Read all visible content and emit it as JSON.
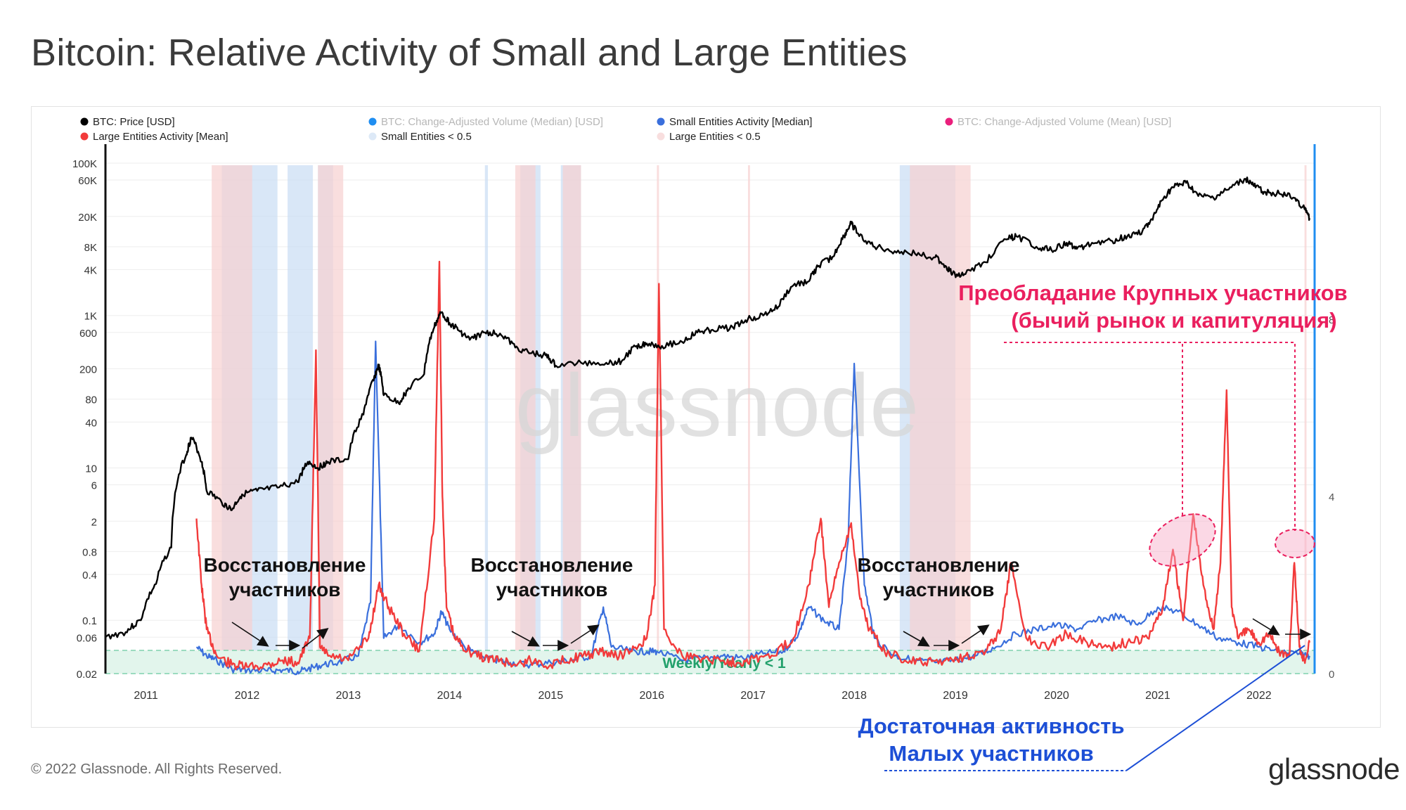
{
  "title": "Bitcoin: Relative Activity of Small and Large Entities",
  "footer": "© 2022 Glassnode. All Rights Reserved.",
  "brand": "glassnode",
  "watermark": "glassnode",
  "annotations": {
    "recovery_label": "Восстановление участников",
    "large_dominance_line1": "Преобладание Крупных участников",
    "large_dominance_line2": "(бычий рынок и капитуляция)",
    "small_activity_line1": "Достаточная активность",
    "small_activity_line2": "Малых участников",
    "threshold_band": "Weekly/Yearly  < 1"
  },
  "colors": {
    "price": "#000000",
    "small_entities": "#3a6fdc",
    "large_entities": "#f23b3b",
    "median_volume": "#1f8ef1",
    "mean_volume": "#ea1f7c",
    "small_band": "#c9ddf3",
    "large_band": "#f6d0d0",
    "threshold_band": "#e2f5ec",
    "threshold_text": "#22a06b",
    "annotation_red": "#ea1f5e",
    "annotation_blue": "#1d4fd6"
  },
  "chart_data": {
    "type": "line",
    "legend": [
      {
        "label": "BTC: Price [USD]",
        "color": "#000000"
      },
      {
        "label": "BTC: Change-Adjusted Volume (Median) [USD]",
        "color": "#1f8ef1",
        "faded": true
      },
      {
        "label": "Small Entities Activity [Median]",
        "color": "#3a6fdc"
      },
      {
        "label": "BTC: Change-Adjusted Volume (Mean) [USD]",
        "color": "#ea1f7c",
        "faded": true
      },
      {
        "label": "Large Entities Activity [Mean]",
        "color": "#f23b3b"
      },
      {
        "label": "Small Entities < 0.5",
        "color": "#dde9f7"
      },
      {
        "label": "Large Entities < 0.5",
        "color": "#f8dede"
      }
    ],
    "x_ticks": [
      "2011",
      "2012",
      "2013",
      "2014",
      "2015",
      "2016",
      "2017",
      "2018",
      "2019",
      "2020",
      "2021",
      "2022"
    ],
    "y_left_ticks": [
      "100K",
      "60K",
      "20K",
      "8K",
      "4K",
      "1K",
      "600",
      "200",
      "80",
      "40",
      "10",
      "6",
      "2",
      "0.8",
      "0.4",
      "0.1",
      "0.06",
      "0.02"
    ],
    "y_right_ticks": [
      "8",
      "4",
      "0"
    ],
    "y_left_scale": "log",
    "y_left_range": [
      0.02,
      100000
    ],
    "y_right_range": [
      0,
      8
    ],
    "threshold_right": 0.3,
    "price_series": {
      "name": "BTC: Price [USD]",
      "x": [
        2010.6,
        2010.8,
        2010.95,
        2011.1,
        2011.25,
        2011.4,
        2011.45,
        2011.55,
        2011.6,
        2011.75,
        2011.85,
        2011.95,
        2012.1,
        2012.3,
        2012.5,
        2012.6,
        2012.7,
        2012.8,
        2013.0,
        2013.15,
        2013.25,
        2013.3,
        2013.35,
        2013.5,
        2013.6,
        2013.75,
        2013.85,
        2013.92,
        2014.0,
        2014.1,
        2014.2,
        2014.35,
        2014.5,
        2014.65,
        2014.8,
        2014.95,
        2015.05,
        2015.3,
        2015.55,
        2015.7,
        2015.85,
        2015.95,
        2016.1,
        2016.3,
        2016.45,
        2016.6,
        2016.8,
        2016.95,
        2017.1,
        2017.25,
        2017.4,
        2017.55,
        2017.65,
        2017.8,
        2017.9,
        2017.97,
        2018.05,
        2018.2,
        2018.4,
        2018.6,
        2018.8,
        2018.9,
        2018.97,
        2019.1,
        2019.3,
        2019.5,
        2019.6,
        2019.8,
        2019.95,
        2020.1,
        2020.2,
        2020.35,
        2020.55,
        2020.7,
        2020.85,
        2020.95,
        2021.05,
        2021.15,
        2021.28,
        2021.4,
        2021.55,
        2021.7,
        2021.87,
        2021.95,
        2022.05,
        2022.2,
        2022.35,
        2022.45,
        2022.5
      ],
      "values": [
        0.06,
        0.07,
        0.1,
        0.3,
        0.9,
        15,
        25,
        12,
        5,
        3.5,
        2.8,
        4.5,
        5,
        5.5,
        6.5,
        12,
        10,
        12,
        13,
        50,
        140,
        220,
        90,
        70,
        110,
        170,
        700,
        1100,
        800,
        620,
        480,
        600,
        580,
        380,
        320,
        300,
        220,
        240,
        240,
        250,
        400,
        430,
        400,
        450,
        600,
        650,
        700,
        900,
        1000,
        1300,
        2500,
        2800,
        4500,
        6000,
        11000,
        16000,
        11000,
        8000,
        7000,
        6500,
        5800,
        4500,
        3500,
        3500,
        5000,
        10000,
        11000,
        8000,
        7200,
        9000,
        7500,
        9000,
        9500,
        11000,
        13000,
        18000,
        33000,
        48000,
        55000,
        37000,
        35000,
        45000,
        62000,
        50000,
        42000,
        40000,
        35000,
        25000,
        19000
      ]
    },
    "series": [
      {
        "name": "Small Entities Activity [Median]",
        "x": [
          2011.5,
          2011.6,
          2011.7,
          2011.85,
          2012.0,
          2012.2,
          2012.35,
          2012.5,
          2012.6,
          2012.75,
          2012.9,
          2013.1,
          2013.22,
          2013.27,
          2013.35,
          2013.5,
          2013.7,
          2013.85,
          2013.92,
          2014.0,
          2014.15,
          2014.3,
          2014.45,
          2014.6,
          2014.8,
          2015.0,
          2015.2,
          2015.4,
          2015.52,
          2015.6,
          2015.8,
          2015.95,
          2016.05,
          2016.3,
          2016.5,
          2016.7,
          2016.9,
          2017.1,
          2017.3,
          2017.45,
          2017.55,
          2017.7,
          2017.85,
          2017.94,
          2018.0,
          2018.1,
          2018.2,
          2018.4,
          2018.6,
          2018.8,
          2019.0,
          2019.2,
          2019.4,
          2019.6,
          2019.8,
          2020.0,
          2020.2,
          2020.4,
          2020.6,
          2020.8,
          2021.0,
          2021.2,
          2021.4,
          2021.6,
          2021.8,
          2022.0,
          2022.2,
          2022.4,
          2022.5
        ],
        "values": [
          0.6,
          0.4,
          0.3,
          0.1,
          0.08,
          0.06,
          0.08,
          0.05,
          0.1,
          0.2,
          0.25,
          0.4,
          1.6,
          7.5,
          0.8,
          1.1,
          0.7,
          0.9,
          1.4,
          1.0,
          0.6,
          0.4,
          0.3,
          0.25,
          0.2,
          0.25,
          0.3,
          0.4,
          1.5,
          0.6,
          0.5,
          0.5,
          0.5,
          0.3,
          0.35,
          0.4,
          0.35,
          0.45,
          0.5,
          0.9,
          1.5,
          1.2,
          1.0,
          3.0,
          7.0,
          2.0,
          0.8,
          0.4,
          0.3,
          0.25,
          0.3,
          0.4,
          0.6,
          0.9,
          1.0,
          1.1,
          1.0,
          1.2,
          1.3,
          1.1,
          1.5,
          1.4,
          1.1,
          0.8,
          0.7,
          0.6,
          0.5,
          0.45,
          0.4
        ]
      },
      {
        "name": "Large Entities Activity [Mean]",
        "x": [
          2011.5,
          2011.55,
          2011.6,
          2011.7,
          2011.85,
          2012.0,
          2012.2,
          2012.35,
          2012.5,
          2012.62,
          2012.68,
          2012.72,
          2012.8,
          2013.0,
          2013.2,
          2013.3,
          2013.4,
          2013.55,
          2013.7,
          2013.85,
          2013.9,
          2013.93,
          2013.97,
          2014.05,
          2014.2,
          2014.35,
          2014.5,
          2014.65,
          2014.8,
          2015.0,
          2015.2,
          2015.35,
          2015.5,
          2015.65,
          2015.8,
          2015.95,
          2016.03,
          2016.07,
          2016.12,
          2016.3,
          2016.5,
          2016.7,
          2016.85,
          2017.0,
          2017.2,
          2017.4,
          2017.55,
          2017.67,
          2017.75,
          2017.85,
          2017.97,
          2018.05,
          2018.15,
          2018.3,
          2018.5,
          2018.7,
          2018.9,
          2019.1,
          2019.3,
          2019.45,
          2019.55,
          2019.7,
          2019.9,
          2020.1,
          2020.3,
          2020.5,
          2020.7,
          2020.9,
          2021.05,
          2021.15,
          2021.25,
          2021.35,
          2021.45,
          2021.55,
          2021.62,
          2021.68,
          2021.73,
          2021.8,
          2021.9,
          2022.0,
          2022.1,
          2022.2,
          2022.3,
          2022.35,
          2022.4,
          2022.45,
          2022.5
        ],
        "values": [
          3.5,
          2.0,
          1.0,
          0.4,
          0.2,
          0.15,
          0.2,
          0.3,
          0.25,
          0.8,
          7.3,
          0.6,
          0.4,
          0.3,
          0.8,
          2.0,
          1.5,
          0.9,
          0.5,
          3.5,
          9.3,
          4.0,
          1.5,
          0.8,
          0.5,
          0.35,
          0.3,
          0.2,
          0.3,
          0.2,
          0.35,
          0.4,
          0.5,
          0.4,
          0.5,
          0.8,
          2.0,
          8.8,
          1.0,
          0.4,
          0.35,
          0.3,
          0.25,
          0.35,
          0.4,
          0.8,
          2.0,
          3.5,
          1.5,
          2.5,
          3.4,
          1.8,
          1.0,
          0.5,
          0.3,
          0.25,
          0.3,
          0.4,
          0.5,
          1.0,
          2.5,
          0.8,
          0.6,
          0.9,
          0.7,
          0.6,
          0.7,
          0.8,
          1.5,
          2.8,
          1.2,
          3.6,
          2.0,
          1.0,
          2.5,
          6.4,
          1.5,
          0.8,
          1.0,
          0.7,
          0.9,
          0.5,
          0.4,
          2.5,
          0.6,
          0.3,
          0.7
        ]
      }
    ],
    "small_threshold_bands": [
      [
        2011.75,
        2012.3
      ],
      [
        2012.4,
        2012.65
      ],
      [
        2012.7,
        2012.85
      ],
      [
        2014.35,
        2014.38
      ],
      [
        2014.7,
        2014.9
      ],
      [
        2015.1,
        2015.3
      ],
      [
        2018.45,
        2019.0
      ]
    ],
    "large_threshold_bands": [
      [
        2011.65,
        2012.05
      ],
      [
        2012.7,
        2012.95
      ],
      [
        2014.65,
        2014.85
      ],
      [
        2015.12,
        2015.3
      ],
      [
        2016.05,
        2016.07
      ],
      [
        2016.95,
        2016.97
      ],
      [
        2018.55,
        2019.15
      ],
      [
        2022.45,
        2022.47
      ]
    ]
  }
}
